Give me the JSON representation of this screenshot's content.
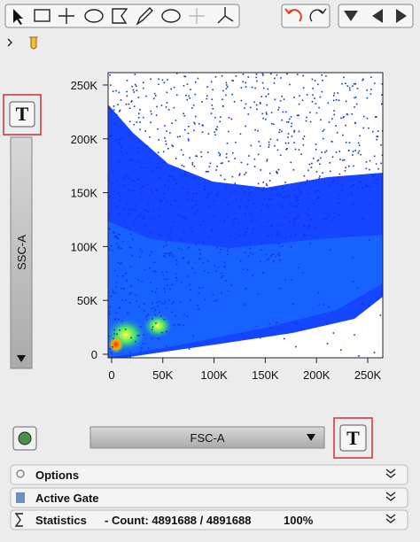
{
  "toolbar": {
    "text_button": "T"
  },
  "plot": {
    "x_label": "FSC-A",
    "y_label": "SSC-A",
    "xlim": [
      -3400,
      264700
    ],
    "ylim": [
      -3300,
      261500
    ],
    "xticks": [
      0,
      {
        "value": 50000,
        "label": "50K"
      },
      {
        "value": 100000,
        "label": "100K"
      },
      {
        "value": 150000,
        "label": "150K"
      },
      {
        "value": 200000,
        "label": "200K"
      },
      {
        "value": 250000,
        "label": "250K"
      }
    ],
    "yticks": [
      0,
      {
        "value": 50000,
        "label": "50K"
      },
      {
        "value": 100000,
        "label": "100K"
      },
      {
        "value": 150000,
        "label": "150K"
      },
      {
        "value": 200000,
        "label": "200K"
      },
      {
        "value": 250000,
        "label": "250K"
      }
    ]
  },
  "panels": {
    "options": "Options",
    "active_gate": "Active Gate",
    "statistics": "Statistics",
    "count": "- Count: 4891688 / 4891688",
    "percent": "100%"
  }
}
